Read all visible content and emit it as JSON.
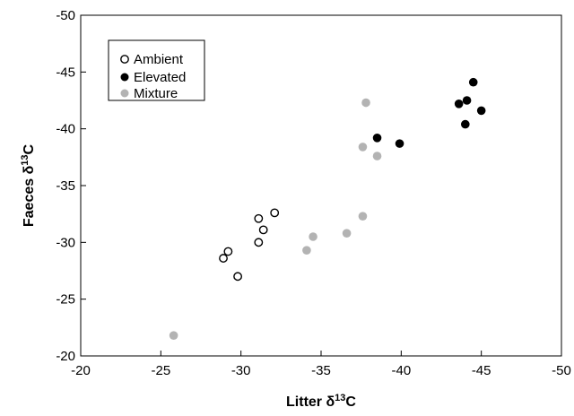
{
  "chart_data": {
    "type": "scatter",
    "title": "",
    "xlabel": {
      "main": "Litter δ",
      "sup": "13",
      "tail": "C"
    },
    "ylabel": {
      "main": "Faeces δ",
      "sup": "13",
      "tail": "C"
    },
    "xlim": [
      -20,
      -50
    ],
    "ylim": [
      -20,
      -50
    ],
    "xticks": [
      -20,
      -25,
      -30,
      -35,
      -40,
      -45,
      -50
    ],
    "yticks": [
      -20,
      -25,
      -30,
      -35,
      -40,
      -45,
      -50
    ],
    "grid": false,
    "legend_position": "top-left",
    "series": [
      {
        "name": "Ambient",
        "marker": "open-circle",
        "color": "#000000",
        "points": [
          {
            "x": -28.9,
            "y": -28.6
          },
          {
            "x": -29.2,
            "y": -29.2
          },
          {
            "x": -29.8,
            "y": -27.0
          },
          {
            "x": -31.1,
            "y": -30.0
          },
          {
            "x": -31.4,
            "y": -31.1
          },
          {
            "x": -31.1,
            "y": -32.1
          },
          {
            "x": -32.1,
            "y": -32.6
          }
        ]
      },
      {
        "name": "Elevated",
        "marker": "filled-circle",
        "color": "#000000",
        "points": [
          {
            "x": -38.5,
            "y": -39.2
          },
          {
            "x": -39.9,
            "y": -38.7
          },
          {
            "x": -43.6,
            "y": -42.2
          },
          {
            "x": -44.1,
            "y": -42.5
          },
          {
            "x": -44.5,
            "y": -44.1
          },
          {
            "x": -44.0,
            "y": -40.4
          },
          {
            "x": -45.0,
            "y": -41.6
          }
        ]
      },
      {
        "name": "Mixture",
        "marker": "filled-circle",
        "color": "#b3b3b3",
        "points": [
          {
            "x": -25.8,
            "y": -21.8
          },
          {
            "x": -34.1,
            "y": -29.3
          },
          {
            "x": -34.5,
            "y": -30.5
          },
          {
            "x": -36.6,
            "y": -30.8
          },
          {
            "x": -37.6,
            "y": -32.3
          },
          {
            "x": -37.6,
            "y": -38.4
          },
          {
            "x": -38.5,
            "y": -37.6
          },
          {
            "x": -37.8,
            "y": -42.3
          }
        ]
      }
    ]
  }
}
